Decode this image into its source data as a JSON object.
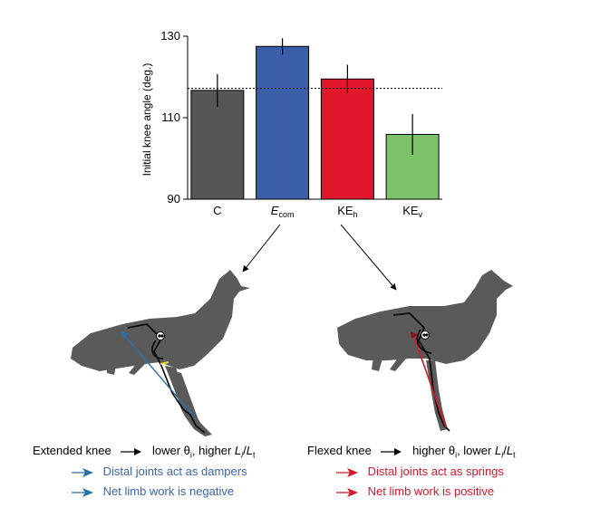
{
  "chart_data": {
    "type": "bar",
    "ylabel": "Initial knee angle (deg.)",
    "ylim": [
      90,
      130
    ],
    "yticks": [
      90,
      110,
      130
    ],
    "reference_line": 117.2,
    "categories": [
      {
        "main": "C",
        "sub": ""
      },
      {
        "main": "E",
        "sub": "com"
      },
      {
        "main": "KE",
        "sub": "h"
      },
      {
        "main": "KE",
        "sub": "v"
      }
    ],
    "values": [
      116.7,
      127.5,
      119.5,
      105.9
    ],
    "errors": [
      4.0,
      2.0,
      3.5,
      5.0
    ],
    "colors": [
      "#565656",
      "#3a5ea8",
      "#e2162b",
      "#7cc26a"
    ]
  },
  "captions": {
    "left": {
      "title": "Extended knee",
      "result_a": "lower θ",
      "result_a_sub": "i",
      "result_b": ", higher ",
      "ratio_l": "L",
      "ratio_l_sub": "i",
      "ratio_slash": "/",
      "ratio_t": "L",
      "ratio_t_sub": "t",
      "line1": "Distal joints act as dampers",
      "line2": "Net limb work is negative",
      "color": "#3a64a8"
    },
    "right": {
      "title": "Flexed knee",
      "result_a": "higher θ",
      "result_a_sub": "i",
      "result_b": ", lower ",
      "ratio_l": "L",
      "ratio_l_sub": "i",
      "ratio_slash": "/",
      "ratio_t": "L",
      "ratio_t_sub": "t",
      "line1": "Distal joints act as springs",
      "line2": "Net limb work is positive",
      "color": "#d8152b"
    }
  }
}
